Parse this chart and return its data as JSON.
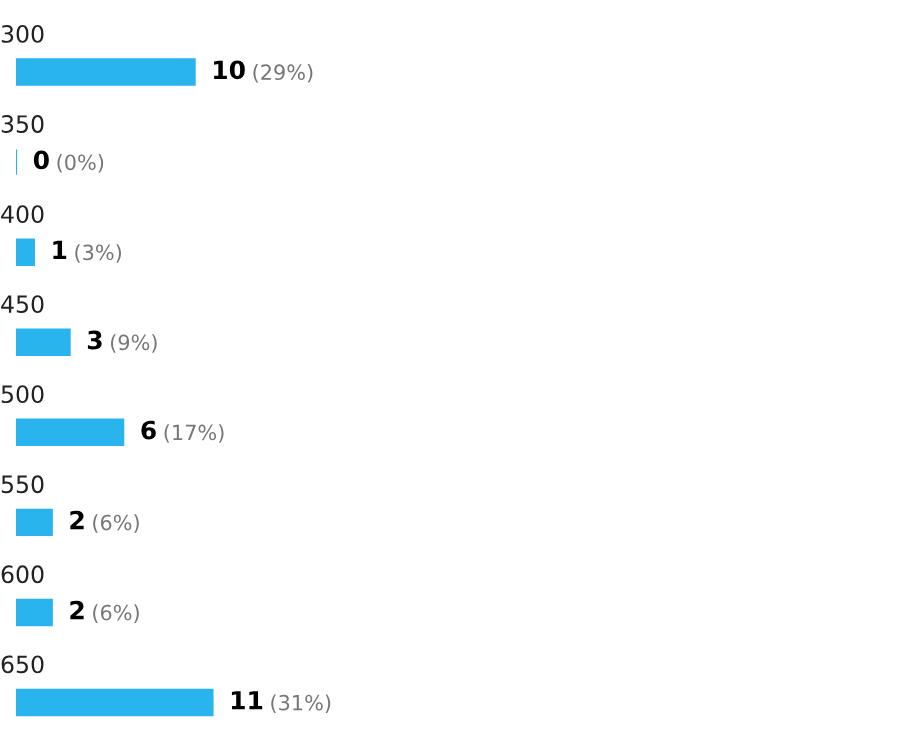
{
  "chart_data": {
    "type": "bar",
    "orientation": "horizontal",
    "categories": [
      "300",
      "350",
      "400",
      "450",
      "500",
      "550",
      "600",
      "650"
    ],
    "values": [
      10,
      0,
      1,
      3,
      6,
      2,
      2,
      11
    ],
    "value_labels": [
      "10 (29%)",
      "0 (0%)",
      "1 (3%)",
      "3 (9%)",
      "6 (17%)",
      "2 (6%)",
      "2 (6%)",
      "11 (31%)"
    ],
    "color": "#2ab4ee"
  }
}
